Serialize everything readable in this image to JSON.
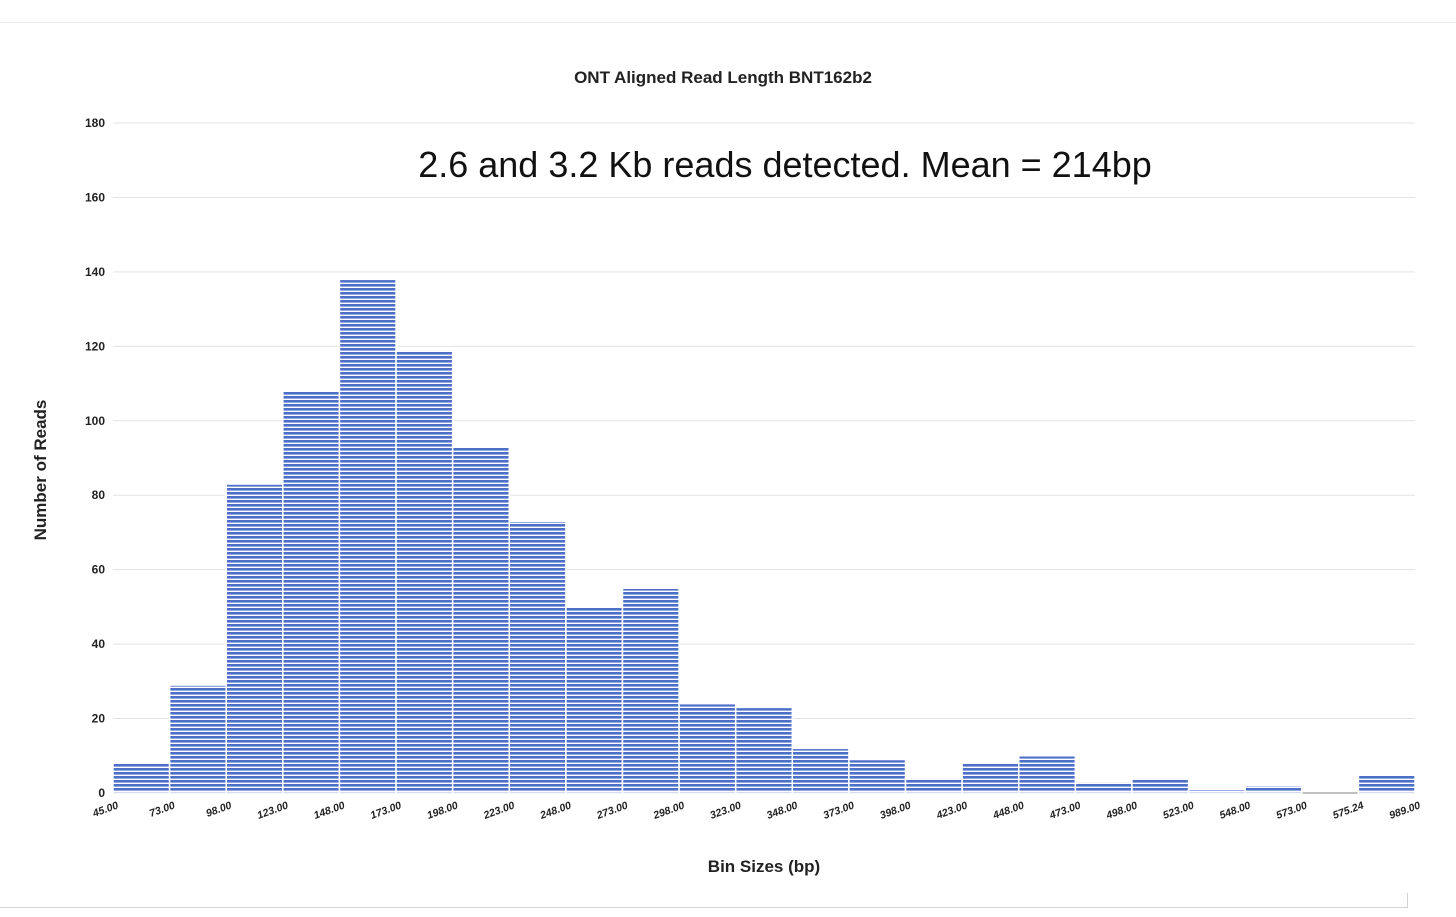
{
  "chart_data": {
    "type": "bar",
    "title": "ONT Aligned Read Length BNT162b2",
    "annotation": "2.6 and 3.2 Kb reads detected. Mean = 214bp",
    "xlabel": "Bin Sizes (bp)",
    "ylabel": "Number of Reads",
    "ylim": [
      0,
      180
    ],
    "yticks": [
      0,
      20,
      40,
      60,
      80,
      100,
      120,
      140,
      160,
      180
    ],
    "bin_edges": [
      "45.00",
      "73.00",
      "98.00",
      "123.00",
      "148.00",
      "173.00",
      "198.00",
      "223.00",
      "248.00",
      "273.00",
      "298.00",
      "323.00",
      "348.00",
      "373.00",
      "398.00",
      "423.00",
      "448.00",
      "473.00",
      "498.00",
      "523.00",
      "548.00",
      "573.00",
      "575.24",
      "989.00"
    ],
    "values": [
      8,
      29,
      83,
      108,
      138,
      119,
      93,
      73,
      50,
      55,
      24,
      23,
      12,
      9,
      4,
      8,
      10,
      3,
      4,
      1,
      2,
      0,
      5
    ],
    "grid": true,
    "legend": "none",
    "bar_color": "#4c6fc9",
    "bar_pattern": "horizontal-stripes"
  }
}
